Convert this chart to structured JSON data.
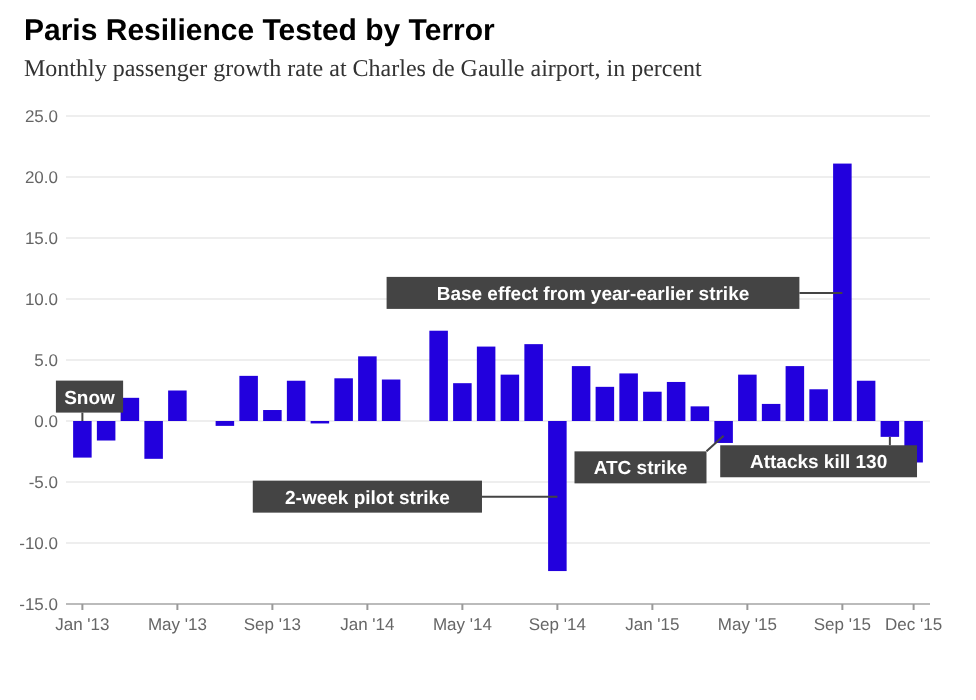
{
  "chart_data": {
    "type": "bar",
    "title": "Paris Resilience Tested by Terror",
    "subtitle": "Monthly passenger growth rate at Charles de Gaulle airport, in percent",
    "categories": [
      "Jan '13",
      null,
      null,
      null,
      "May '13",
      null,
      null,
      null,
      "Sep '13",
      null,
      null,
      null,
      "Jan '14",
      null,
      null,
      null,
      "May '14",
      null,
      null,
      null,
      "Sep '14",
      null,
      null,
      null,
      "Jan '15",
      null,
      null,
      null,
      "May '15",
      null,
      null,
      null,
      "Sep '15",
      null,
      null,
      "Dec '15"
    ],
    "values": [
      -3.0,
      -1.6,
      1.9,
      -3.1,
      2.5,
      null,
      -0.4,
      3.7,
      0.9,
      3.3,
      -0.2,
      3.5,
      5.3,
      3.4,
      null,
      7.4,
      3.1,
      6.1,
      3.8,
      6.3,
      -12.3,
      4.5,
      2.8,
      3.9,
      2.4,
      3.2,
      1.2,
      -1.8,
      3.8,
      1.4,
      4.5,
      2.6,
      21.1,
      3.3,
      -1.3,
      -3.4
    ],
    "color": "#2200dd",
    "ylim": [
      -15,
      25
    ],
    "yticks": [
      {
        "value": -15,
        "label": "-15.0"
      },
      {
        "value": -10,
        "label": "-10.0"
      },
      {
        "value": -5,
        "label": "-5.0"
      },
      {
        "value": 0,
        "label": "0.0"
      },
      {
        "value": 5,
        "label": "5.0"
      },
      {
        "value": 10,
        "label": "10.0"
      },
      {
        "value": 15,
        "label": "15.0"
      },
      {
        "value": 20,
        "label": "20.0"
      },
      {
        "value": 25,
        "label": "25.0"
      }
    ],
    "grid": "y",
    "annotations": [
      "Snow",
      "2-week pilot strike",
      "ATC strike",
      "Attacks kill 130",
      "Base effect from year-earlier strike"
    ]
  }
}
